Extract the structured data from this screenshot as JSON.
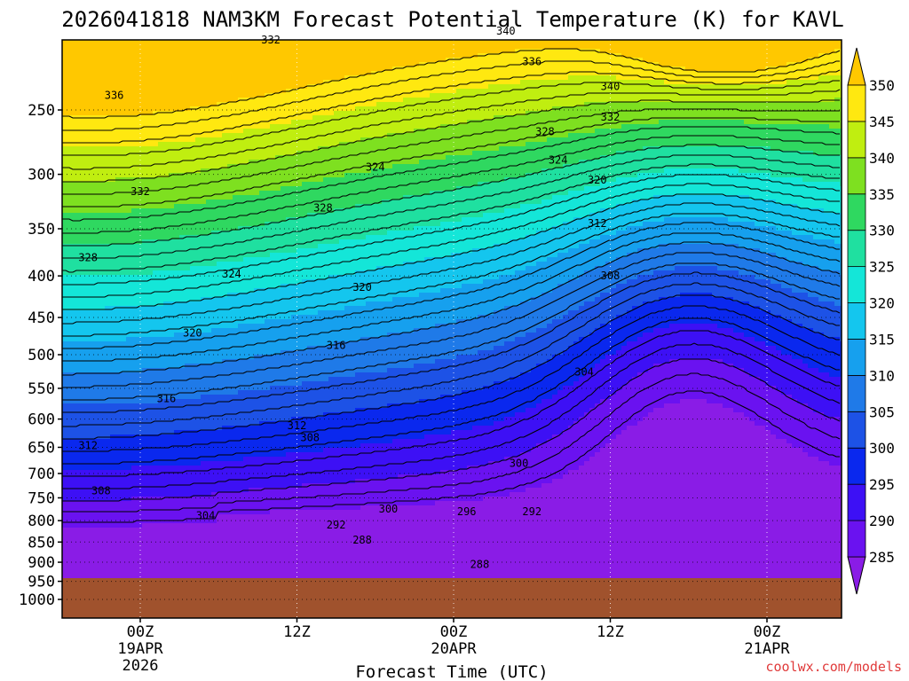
{
  "chart_data": {
    "type": "contour-fill",
    "title": "2026041818 NAM3KM Forecast Potential Temperature (K) for KAVL",
    "xlabel": "Forecast Time (UTC)",
    "ylabel": "",
    "y_axis": {
      "ticks": [
        250,
        300,
        350,
        400,
        450,
        500,
        550,
        600,
        650,
        700,
        750,
        800,
        850,
        900,
        950,
        1000
      ]
    },
    "x_axis": {
      "ticks": [
        {
          "label": "00Z",
          "sub1": "19APR",
          "sub2": "2026"
        },
        {
          "label": "12Z",
          "sub1": "",
          "sub2": ""
        },
        {
          "label": "00Z",
          "sub1": "20APR",
          "sub2": ""
        },
        {
          "label": "12Z",
          "sub1": "",
          "sub2": ""
        },
        {
          "label": "00Z",
          "sub1": "21APR",
          "sub2": ""
        }
      ]
    },
    "colorbar": {
      "levels": [
        285,
        290,
        295,
        300,
        305,
        310,
        315,
        320,
        325,
        330,
        335,
        340,
        345,
        350
      ],
      "colors": [
        "#8a1ce6",
        "#6a12f0",
        "#3d10f5",
        "#0a28ee",
        "#1d52e6",
        "#1f7ae8",
        "#16a0ee",
        "#14c6ee",
        "#14e6d8",
        "#1fe0a0",
        "#2fd860",
        "#7ee020",
        "#c0ee10",
        "#ffe810",
        "#ffc800"
      ]
    },
    "contour_labels": [
      {
        "value": "340",
        "t": 28,
        "p": 200
      },
      {
        "value": "332",
        "t": 10,
        "p": 205
      },
      {
        "value": "336",
        "t": 30,
        "p": 218
      },
      {
        "value": "340",
        "t": 36,
        "p": 234
      },
      {
        "value": "336",
        "t": -2,
        "p": 240
      },
      {
        "value": "332",
        "t": 36,
        "p": 255
      },
      {
        "value": "328",
        "t": 31,
        "p": 266
      },
      {
        "value": "324",
        "t": 32,
        "p": 288
      },
      {
        "value": "324",
        "t": 18,
        "p": 294
      },
      {
        "value": "320",
        "t": 35,
        "p": 305
      },
      {
        "value": "332",
        "t": 0,
        "p": 315
      },
      {
        "value": "328",
        "t": 14,
        "p": 330
      },
      {
        "value": "312",
        "t": 35,
        "p": 345
      },
      {
        "value": "328",
        "t": -4,
        "p": 380
      },
      {
        "value": "324",
        "t": 7,
        "p": 398
      },
      {
        "value": "308",
        "t": 36,
        "p": 400
      },
      {
        "value": "320",
        "t": 17,
        "p": 413
      },
      {
        "value": "320",
        "t": 4,
        "p": 470
      },
      {
        "value": "316",
        "t": 15,
        "p": 487
      },
      {
        "value": "304",
        "t": 34,
        "p": 525
      },
      {
        "value": "316",
        "t": 2,
        "p": 566
      },
      {
        "value": "312",
        "t": 12,
        "p": 611
      },
      {
        "value": "308",
        "t": 13,
        "p": 632
      },
      {
        "value": "312",
        "t": -4,
        "p": 647
      },
      {
        "value": "300",
        "t": 29,
        "p": 680
      },
      {
        "value": "308",
        "t": -3,
        "p": 735
      },
      {
        "value": "300",
        "t": 19,
        "p": 774
      },
      {
        "value": "296",
        "t": 25,
        "p": 780
      },
      {
        "value": "292",
        "t": 30,
        "p": 780
      },
      {
        "value": "304",
        "t": 5,
        "p": 789
      },
      {
        "value": "292",
        "t": 15,
        "p": 810
      },
      {
        "value": "288",
        "t": 17,
        "p": 845
      },
      {
        "value": "288",
        "t": 26,
        "p": 905
      }
    ],
    "terrain_surface_hPa": 950,
    "terrain_color": "#a0522d"
  },
  "credit": "coolwx.com/models"
}
